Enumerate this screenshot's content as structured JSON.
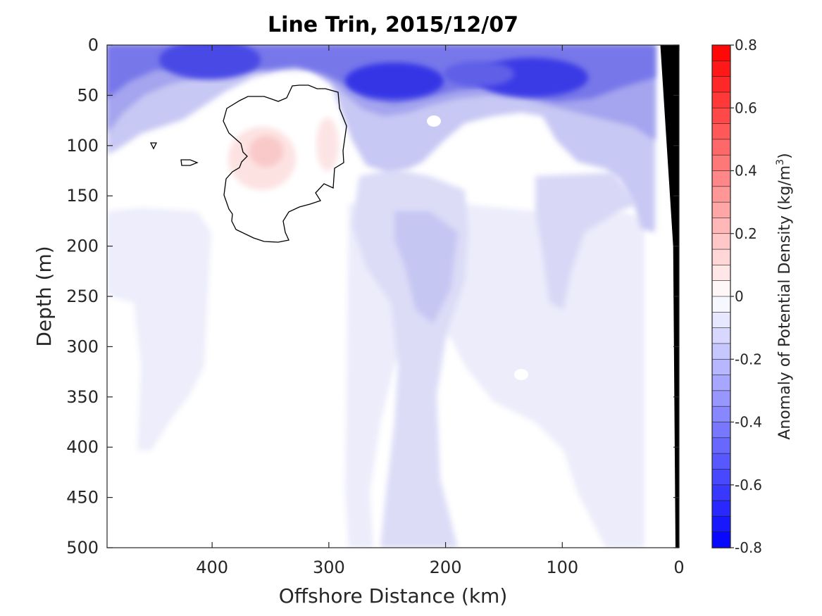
{
  "chart_data": {
    "type": "heatmap",
    "title": "Line Trin, 2015/12/07",
    "xlabel": "Offshore Distance (km)",
    "ylabel": "Depth (m)",
    "colorbar_label": "Anomaly of Potential Density (kg/m",
    "colorbar_label_sup": "3",
    "colorbar_label_end": ")",
    "xlim": [
      490,
      0
    ],
    "ylim": [
      0,
      500
    ],
    "x_reversed": true,
    "y_reversed": true,
    "clim": [
      -0.8,
      0.8
    ],
    "x_ticks": [
      400,
      300,
      200,
      100,
      0
    ],
    "x_tick_labels": [
      "400",
      "300",
      "200",
      "100",
      "0"
    ],
    "y_ticks": [
      0,
      50,
      100,
      150,
      200,
      250,
      300,
      350,
      400,
      450,
      500
    ],
    "y_tick_labels": [
      "0",
      "50",
      "100",
      "150",
      "200",
      "250",
      "300",
      "350",
      "400",
      "450",
      "500"
    ],
    "colorbar_ticks": [
      0.8,
      0.6,
      0.4,
      0.2,
      0,
      -0.2,
      -0.4,
      -0.6,
      -0.8
    ],
    "colorbar_tick_labels": [
      "0.8",
      "0.6",
      "0.4",
      "0.2",
      "0",
      "-0.2",
      "-0.4",
      "-0.6",
      "-0.8"
    ],
    "colorbar_levels": 32,
    "colormap": {
      "low": "#0000ff",
      "mid": "#ffffff",
      "high": "#ff0000"
    },
    "zero_contour_color": "#000000",
    "bathymetry_color": "#000000",
    "features": [
      {
        "name": "surface-low-west",
        "x": 415,
        "depth": 20,
        "value": -0.55
      },
      {
        "name": "surface-low-central",
        "x": 245,
        "depth": 40,
        "value": -0.65
      },
      {
        "name": "surface-low-east",
        "x": 135,
        "depth": 35,
        "value": -0.6
      },
      {
        "name": "near-coast-low",
        "x": 35,
        "depth": 120,
        "value": -0.25
      },
      {
        "name": "eddy-core-1",
        "x": 360,
        "depth": 110,
        "value": 0.1
      },
      {
        "name": "eddy-core-2",
        "x": 308,
        "depth": 90,
        "value": 0.06
      },
      {
        "name": "deep-low-tongue",
        "x": 215,
        "depth": 300,
        "value": -0.12
      }
    ],
    "zero_contours": [
      [
        [
          352,
          73
        ],
        [
          375,
          73
        ],
        [
          395,
          80
        ],
        [
          407,
          75
        ],
        [
          415,
          58
        ],
        [
          425,
          57
        ],
        [
          438,
          57
        ],
        [
          450,
          62
        ],
        [
          462,
          62
        ],
        [
          480,
          67
        ],
        [
          482,
          90
        ],
        [
          492,
          115
        ],
        [
          487,
          150
        ],
        [
          488,
          167
        ],
        [
          475,
          175
        ],
        [
          473,
          203
        ],
        [
          460,
          197
        ],
        [
          448,
          210
        ],
        [
          455,
          221
        ],
        [
          440,
          226
        ],
        [
          425,
          230
        ],
        [
          410,
          237
        ],
        [
          402,
          250
        ],
        [
          405,
          266
        ],
        [
          410,
          277
        ],
        [
          395,
          280
        ],
        [
          375,
          279
        ],
        [
          360,
          274
        ],
        [
          335,
          262
        ],
        [
          329,
          250
        ],
        [
          330,
          240
        ],
        [
          325,
          233
        ],
        [
          318,
          213
        ],
        [
          321,
          190
        ],
        [
          330,
          180
        ],
        [
          340,
          174
        ],
        [
          343,
          166
        ],
        [
          351,
          158
        ],
        [
          345,
          152
        ],
        [
          342,
          140
        ],
        [
          325,
          125
        ],
        [
          317,
          108
        ],
        [
          322,
          90
        ],
        [
          340,
          79
        ]
      ],
      [
        [
          214,
          139
        ],
        [
          222,
          139
        ],
        [
          218,
          147
        ]
      ],
      [
        [
          257,
          163
        ],
        [
          270,
          163
        ],
        [
          280,
          167
        ],
        [
          270,
          171
        ],
        [
          258,
          171
        ]
      ]
    ],
    "bathymetry": [
      [
        16,
        0
      ],
      [
        5,
        200
      ],
      [
        3,
        500
      ],
      [
        0,
        500
      ],
      [
        0,
        0
      ]
    ]
  }
}
